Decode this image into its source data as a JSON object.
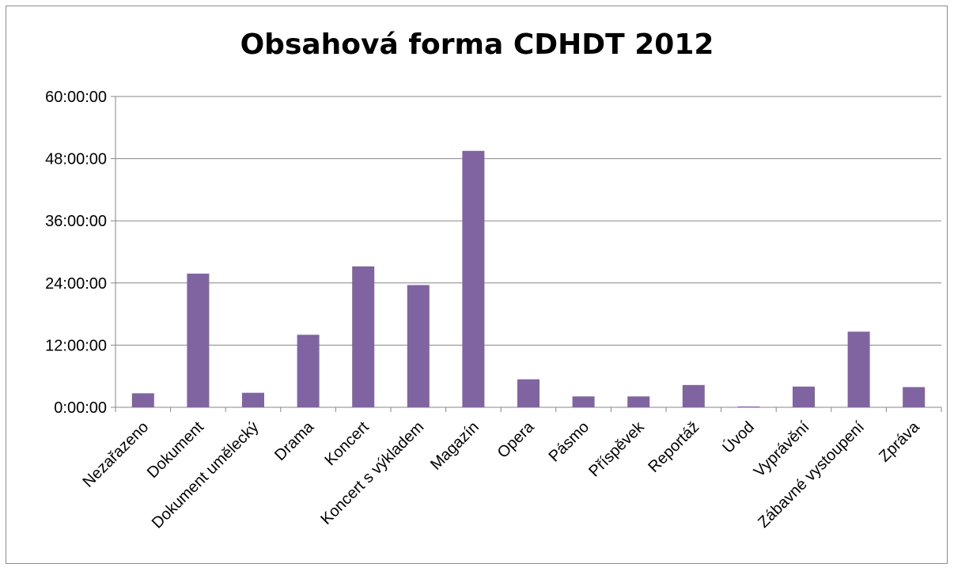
{
  "chart_data": {
    "type": "bar",
    "title": "Obsahová forma CDHDT 2012",
    "categories": [
      "Nezařazeno",
      "Dokument",
      "Dokument umělecký",
      "Drama",
      "Koncert",
      "Koncert s výkladem",
      "Magazín",
      "Opera",
      "Pásmo",
      "Příspěvek",
      "Reportáž",
      "Úvod",
      "Vyprávění",
      "Zábavné vystoupení",
      "Zpráva"
    ],
    "values_hours": [
      2.7,
      25.8,
      2.8,
      14.0,
      27.2,
      23.6,
      49.5,
      5.4,
      2.1,
      2.1,
      4.3,
      0.15,
      4.0,
      14.6,
      3.9
    ],
    "yticks": [
      "0:00:00",
      "12:00:00",
      "24:00:00",
      "36:00:00",
      "48:00:00",
      "60:00:00"
    ],
    "ylim_hours": [
      0,
      60
    ],
    "grid": true,
    "legend": "none",
    "bar_color": "#8064a2"
  }
}
